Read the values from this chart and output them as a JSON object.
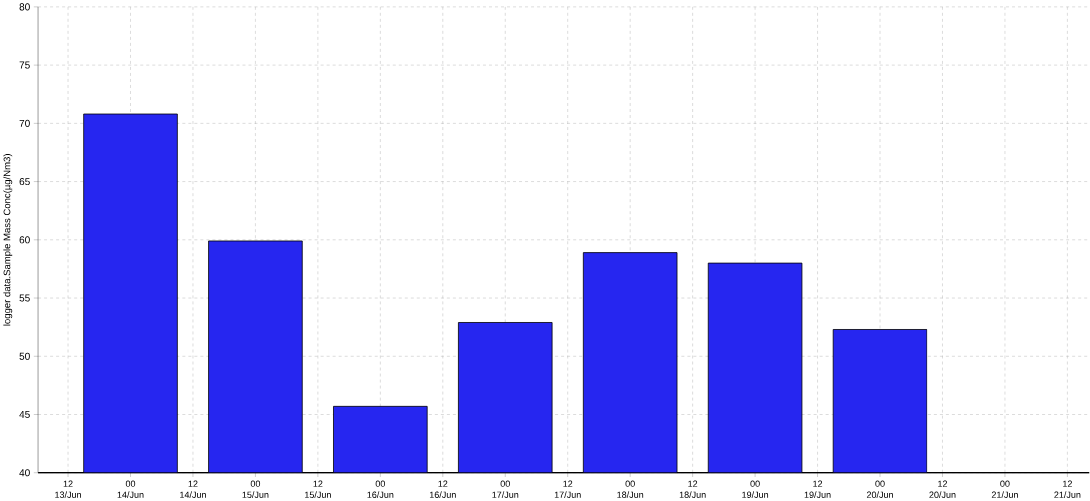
{
  "chart_data": {
    "type": "bar",
    "ylabel": "logger data.Sample Mass Conc(µg/Nm3)",
    "categories": [
      "12 13/Jun",
      "00 14/Jun",
      "12 14/Jun",
      "00 15/Jun",
      "12 15/Jun",
      "00 16/Jun",
      "12 16/Jun",
      "00 17/Jun",
      "12 17/Jun",
      "00 18/Jun",
      "12 18/Jun",
      "00 19/Jun",
      "12 19/Jun",
      "00 20/Jun",
      "12 20/Jun",
      "00 21/Jun",
      "12 21/Jun"
    ],
    "values": [
      null,
      70.8,
      null,
      59.9,
      null,
      45.7,
      null,
      52.9,
      null,
      58.9,
      null,
      58.0,
      null,
      52.3,
      null,
      null,
      null
    ],
    "color": "#2626f0",
    "ylim": [
      40,
      80
    ],
    "yticks": [
      40,
      45,
      50,
      55,
      60,
      65,
      70,
      75,
      80
    ],
    "grid": true
  }
}
